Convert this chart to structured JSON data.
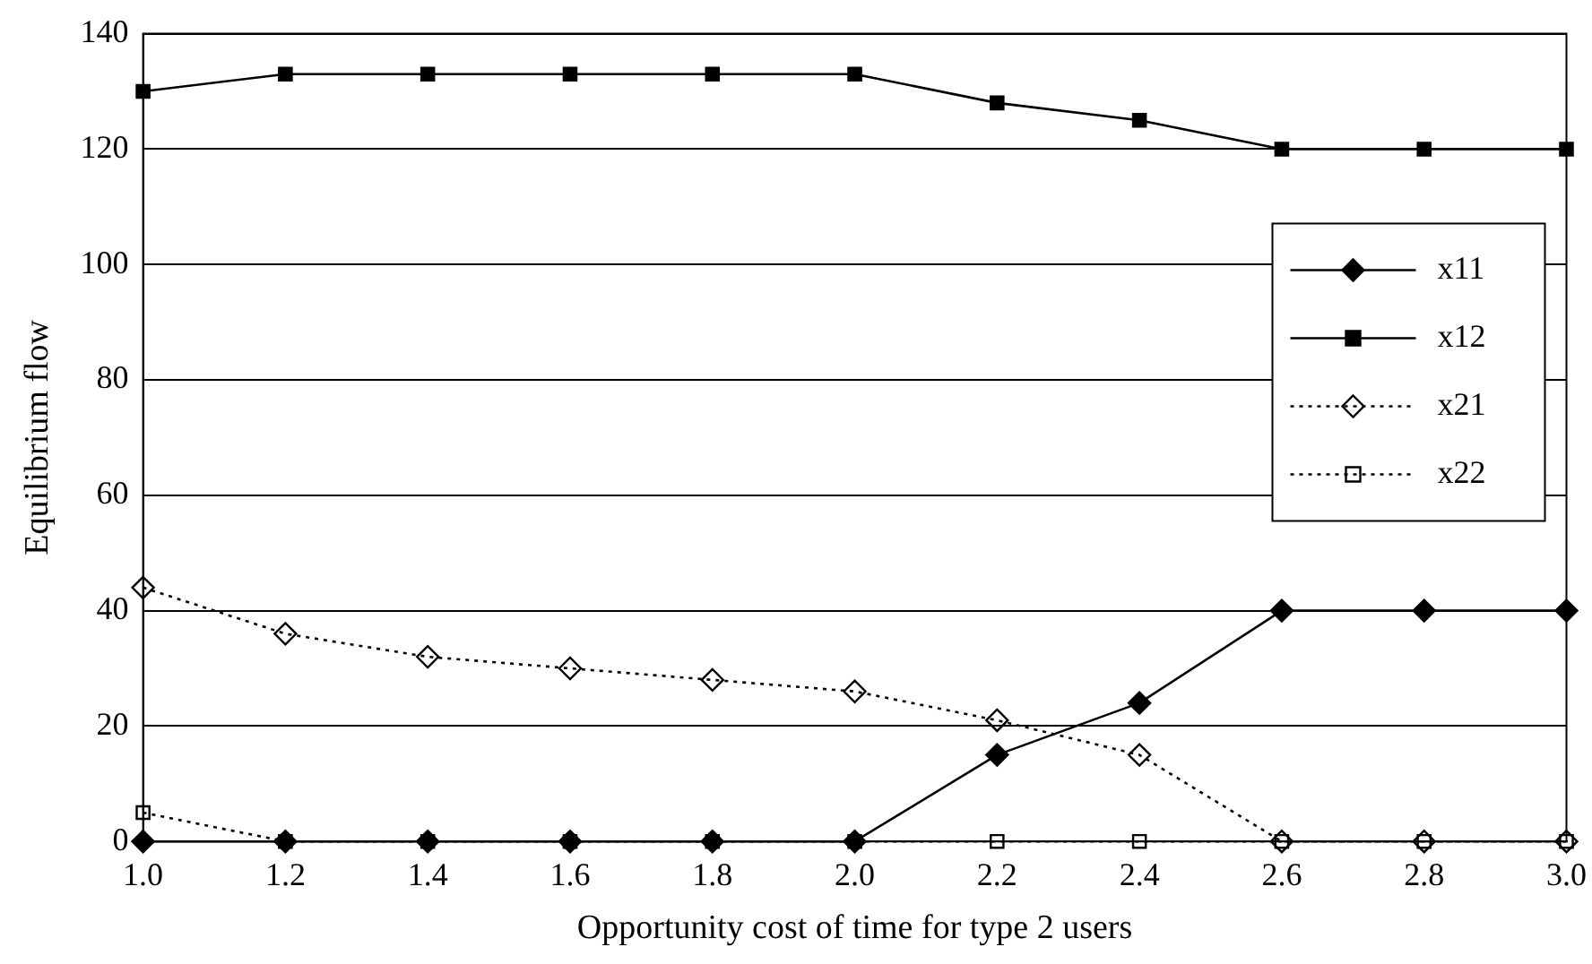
{
  "chart_data": {
    "type": "line",
    "xlabel": "Opportunity cost of time for type 2 users",
    "ylabel": "Equilibrium flow",
    "x": [
      1.0,
      1.2,
      1.4,
      1.6,
      1.8,
      2.0,
      2.2,
      2.4,
      2.6,
      2.8,
      3.0
    ],
    "series": [
      {
        "name": "x11",
        "color": "#000000",
        "marker": "diamond",
        "line_style": "solid",
        "values": [
          0,
          0,
          0,
          0,
          0,
          0,
          15,
          24,
          40,
          40,
          40
        ]
      },
      {
        "name": "x12",
        "color": "#000000",
        "marker": "square",
        "line_style": "solid",
        "values": [
          130,
          133,
          133,
          133,
          133,
          133,
          128,
          125,
          120,
          120,
          120
        ]
      },
      {
        "name": "x21",
        "color": "#000000",
        "marker": "diamond",
        "line_style": "dotted",
        "values": [
          44,
          36,
          32,
          30,
          28,
          26,
          21,
          15,
          0,
          0,
          0
        ]
      },
      {
        "name": "x22",
        "color": "#000000",
        "marker": "square",
        "line_style": "dotted",
        "values": [
          5,
          0,
          0,
          0,
          0,
          0,
          0,
          0,
          0,
          0,
          0
        ]
      }
    ],
    "xlim": [
      1.0,
      3.0
    ],
    "xticks": [
      {
        "value": 1.0,
        "label": "1.0"
      },
      {
        "value": 1.2,
        "label": "1.2"
      },
      {
        "value": 1.4,
        "label": "1.4"
      },
      {
        "value": 1.6,
        "label": "1.6"
      },
      {
        "value": 1.8,
        "label": "1.8"
      },
      {
        "value": 2.0,
        "label": "2.0"
      },
      {
        "value": 2.2,
        "label": "2.2"
      },
      {
        "value": 2.4,
        "label": "2.4"
      },
      {
        "value": 2.6,
        "label": "2.6"
      },
      {
        "value": 2.8,
        "label": "2.8"
      },
      {
        "value": 3.0,
        "label": "3.0"
      }
    ],
    "ylim": [
      0,
      140
    ],
    "yticks": [
      0,
      20,
      40,
      60,
      80,
      100,
      120,
      140
    ],
    "grid": "y",
    "legend": "right"
  }
}
